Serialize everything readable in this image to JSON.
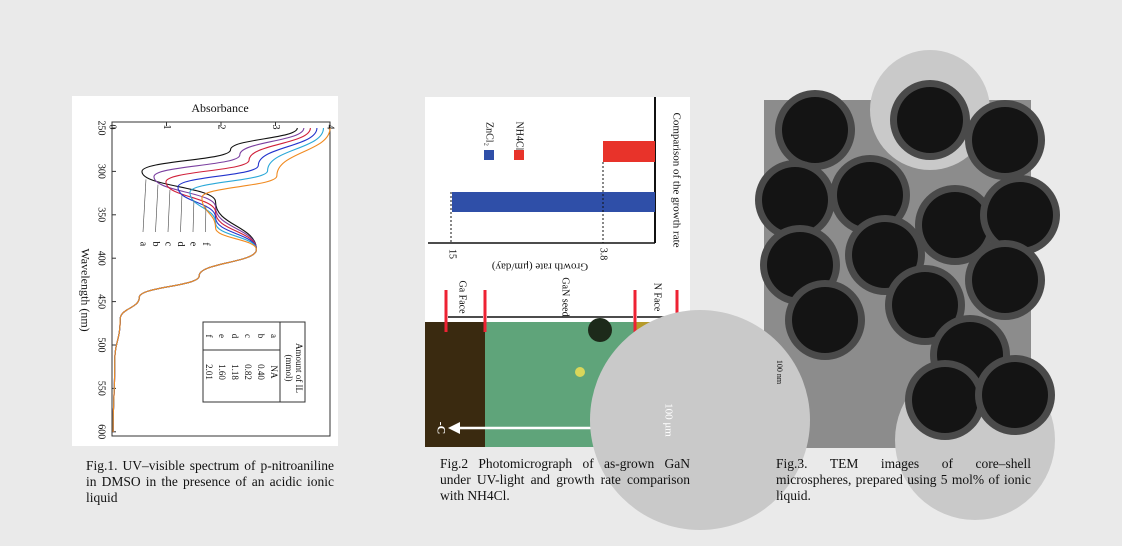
{
  "figures": [
    {
      "caption": "Fig.1. UV–visible spectrum of p-nitroaniline in DMSO in the presence of an acidic ionic liquid",
      "absorbance_title": "Absorbance",
      "absorbance_ticks": [
        "0",
        "1",
        "2",
        "3",
        "4"
      ],
      "wavelength_title": "Wavelength (nm)",
      "wavelength_ticks": [
        "250",
        "300",
        "350",
        "400",
        "450",
        "500",
        "550",
        "600"
      ],
      "curve_labels": [
        "a",
        "b",
        "c",
        "d",
        "e",
        "f"
      ],
      "table": {
        "header": [
          "Amount of IL",
          "(mmol)"
        ],
        "rows": [
          [
            "a",
            "NA"
          ],
          [
            "b",
            "0.40"
          ],
          [
            "c",
            "0.82"
          ],
          [
            "d",
            "1.18"
          ],
          [
            "e",
            "1.60"
          ],
          [
            "f",
            "2.01"
          ]
        ]
      }
    },
    {
      "caption": "Fig.2 Photomicrograph of as-grown GaN under UV-light and growth rate comparison with NH4Cl.",
      "legend": [
        "ZnCl₂",
        "NH4Cl"
      ],
      "side_title": "Comparison of the growth rate",
      "axis_title": "Growth rate (μm/day)",
      "bar_labels": [
        "15",
        "3.8"
      ],
      "regions": [
        "Ga Face",
        "GaN seed",
        "N Face"
      ],
      "direction": "-C",
      "scale": "100 μm"
    },
    {
      "caption": "Fig.3. TEM images of core–shell microspheres, prepared using 5 mol% of ionic liquid.",
      "scale": "100 nm"
    }
  ]
}
